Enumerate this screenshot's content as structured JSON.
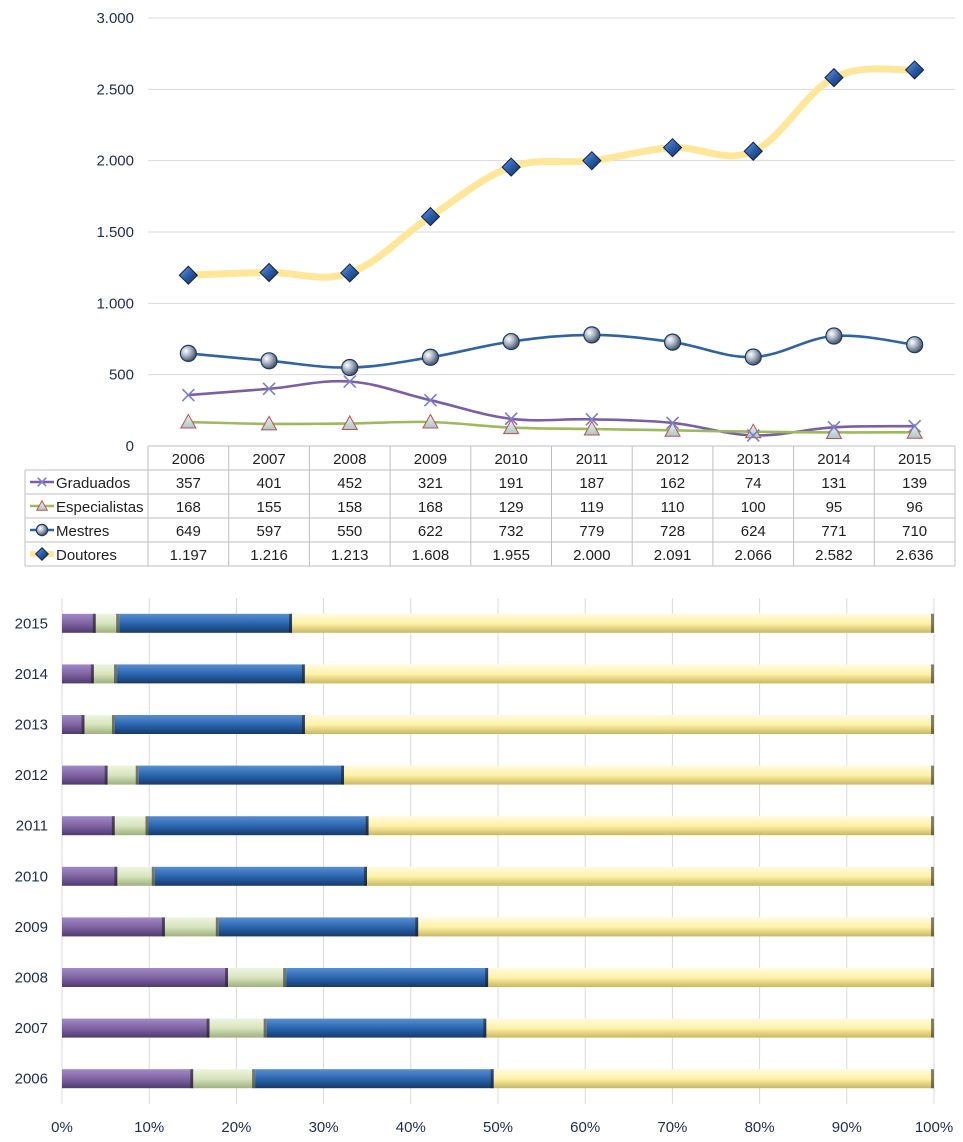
{
  "colors": {
    "graduados": "#7b5ea7",
    "especialistas": "#9bbb59",
    "mestres": "#2e64a6",
    "doutores": "#ffe699",
    "doutores_marker": "#2a5ca8",
    "gridline": "#d9d9d9",
    "table_border": "#bfbfbf",
    "bar_graduados": "#8064a2",
    "bar_especialistas": "#d7e4bd",
    "bar_mestres": "#2a66b0",
    "bar_doutores": "#fff2a8"
  },
  "chart_data": [
    {
      "type": "line",
      "categories": [
        "2006",
        "2007",
        "2008",
        "2009",
        "2010",
        "2011",
        "2012",
        "2013",
        "2014",
        "2015"
      ],
      "ylim": [
        0,
        3000
      ],
      "yticks": [
        0,
        500,
        1000,
        1500,
        2000,
        2500,
        3000
      ],
      "ytick_labels": [
        "0",
        "500",
        "1.000",
        "1.500",
        "2.000",
        "2.500",
        "3.000"
      ],
      "grid": true,
      "data_table": true,
      "series": [
        {
          "name": "Graduados",
          "key": "graduados",
          "marker": "x-icon",
          "values": [
            357,
            401,
            452,
            321,
            191,
            187,
            162,
            74,
            131,
            139
          ],
          "labels": [
            "357",
            "401",
            "452",
            "321",
            "191",
            "187",
            "162",
            "74",
            "131",
            "139"
          ]
        },
        {
          "name": "Especialistas",
          "key": "especialistas",
          "marker": "triangle-icon",
          "values": [
            168,
            155,
            158,
            168,
            129,
            119,
            110,
            100,
            95,
            96
          ],
          "labels": [
            "168",
            "155",
            "158",
            "168",
            "129",
            "119",
            "110",
            "100",
            "95",
            "96"
          ]
        },
        {
          "name": "Mestres",
          "key": "mestres",
          "marker": "sphere-icon",
          "values": [
            649,
            597,
            550,
            622,
            732,
            779,
            728,
            624,
            771,
            710
          ],
          "labels": [
            "649",
            "597",
            "550",
            "622",
            "732",
            "779",
            "728",
            "624",
            "771",
            "710"
          ]
        },
        {
          "name": "Doutores",
          "key": "doutores",
          "marker": "diamond-icon",
          "values": [
            1197,
            1216,
            1213,
            1608,
            1955,
            2000,
            2091,
            2066,
            2582,
            2636
          ],
          "labels": [
            "1.197",
            "1.216",
            "1.213",
            "1.608",
            "1.955",
            "2.000",
            "2.091",
            "2.066",
            "2.582",
            "2.636"
          ]
        }
      ]
    },
    {
      "type": "bar",
      "orientation": "horizontal",
      "stacked": "percent",
      "categories": [
        "2015",
        "2014",
        "2013",
        "2012",
        "2011",
        "2010",
        "2009",
        "2008",
        "2007",
        "2006"
      ],
      "xlim": [
        0,
        100
      ],
      "xticks": [
        0,
        10,
        20,
        30,
        40,
        50,
        60,
        70,
        80,
        90,
        100
      ],
      "xtick_labels": [
        "0%",
        "10%",
        "20%",
        "30%",
        "40%",
        "50%",
        "60%",
        "70%",
        "80%",
        "90%",
        "100%"
      ],
      "grid": true,
      "series": [
        {
          "key": "graduados",
          "values": [
            139,
            131,
            74,
            162,
            187,
            191,
            321,
            452,
            401,
            357
          ]
        },
        {
          "key": "especialistas",
          "values": [
            96,
            95,
            100,
            110,
            119,
            129,
            168,
            158,
            155,
            168
          ]
        },
        {
          "key": "mestres",
          "values": [
            710,
            771,
            624,
            728,
            779,
            732,
            622,
            550,
            597,
            649
          ]
        },
        {
          "key": "doutores",
          "values": [
            2636,
            2582,
            2066,
            2091,
            2000,
            1955,
            1608,
            1213,
            1216,
            1197
          ]
        }
      ]
    }
  ]
}
